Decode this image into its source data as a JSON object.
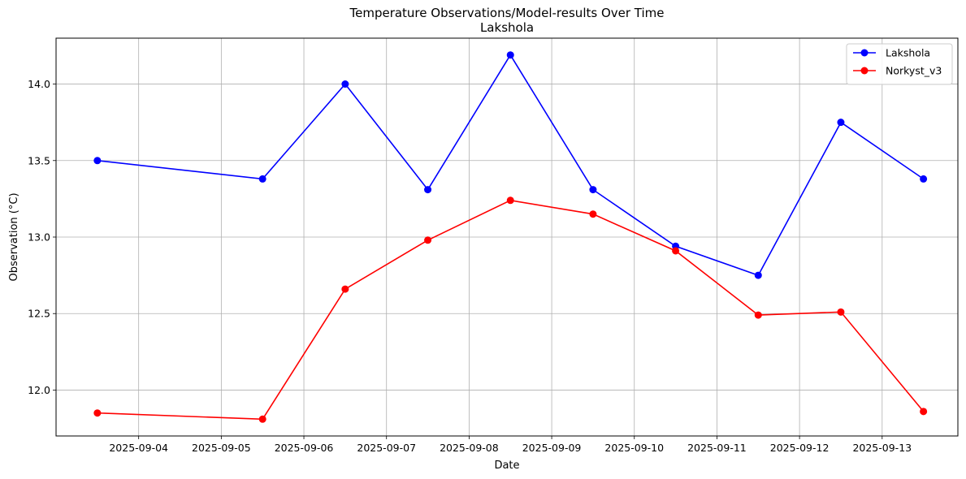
{
  "chart_data": {
    "type": "line",
    "title": "Temperature Observations/Model-results Over Time",
    "subtitle": "Lakshola",
    "xlabel": "Date",
    "ylabel": "Observation (°C)",
    "xlim": [
      "2025-09-03 00:00",
      "2025-09-13 22:00"
    ],
    "ylim": [
      11.7,
      14.3
    ],
    "x_ticks": [
      "2025-09-04",
      "2025-09-05",
      "2025-09-06",
      "2025-09-07",
      "2025-09-08",
      "2025-09-09",
      "2025-09-10",
      "2025-09-11",
      "2025-09-12",
      "2025-09-13"
    ],
    "y_ticks": [
      "12.0",
      "12.5",
      "13.0",
      "13.5",
      "14.0"
    ],
    "grid": true,
    "legend_position": "top-right",
    "x": [
      "2025-09-03 12:00",
      "2025-09-05 12:00",
      "2025-09-06 12:00",
      "2025-09-07 12:00",
      "2025-09-08 12:00",
      "2025-09-09 12:00",
      "2025-09-10 12:00",
      "2025-09-11 12:00",
      "2025-09-12 12:00",
      "2025-09-13 12:00"
    ],
    "series": [
      {
        "name": "Lakshola",
        "color": "#0000ff",
        "values": [
          13.5,
          13.38,
          14.0,
          13.31,
          14.19,
          13.31,
          12.94,
          12.75,
          13.75,
          13.38
        ]
      },
      {
        "name": "Norkyst_v3",
        "color": "#ff0000",
        "values": [
          11.85,
          11.81,
          12.66,
          12.98,
          13.24,
          13.15,
          12.91,
          12.49,
          12.51,
          11.86
        ]
      }
    ]
  }
}
